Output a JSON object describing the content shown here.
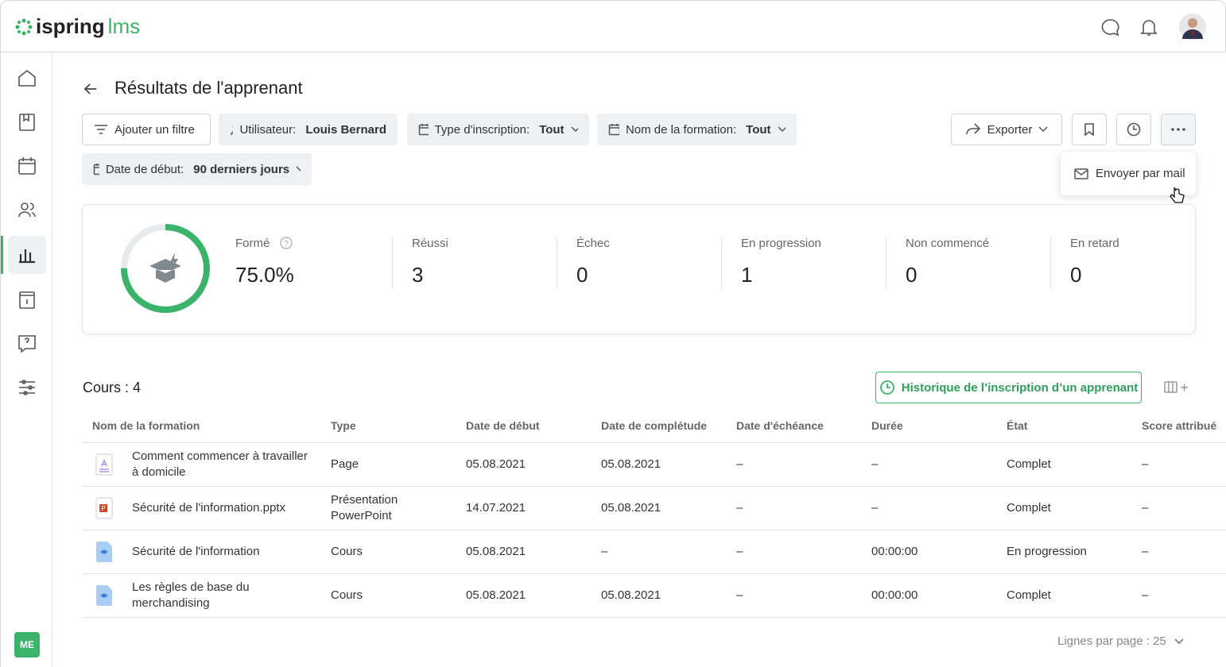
{
  "logo": {
    "brand": "ispring",
    "product": "lms"
  },
  "sidebar": {
    "avatar": "ME"
  },
  "header": {
    "title": "Résultats de l'apprenant"
  },
  "filters": [
    {
      "label": "Ajouter un filtre"
    },
    {
      "label": "Utilisateur:",
      "value": "Louis Bernard"
    },
    {
      "label": "Type d'inscription:",
      "value": "Tout"
    },
    {
      "label": "Nom de la formation:",
      "value": "Tout"
    },
    {
      "label": "Date de début:",
      "value": "90 derniers jours"
    }
  ],
  "actions": {
    "export": "Exporter",
    "menu_item": "Envoyer par mail"
  },
  "stats": {
    "trained": {
      "label": "Formé",
      "value": 75,
      "value_label": "75.0%"
    },
    "items": [
      {
        "label": "Réussi",
        "value": "3"
      },
      {
        "label": "Échec",
        "value": "0"
      },
      {
        "label": "En progression",
        "value": "1"
      },
      {
        "label": "Non commencé",
        "value": "0"
      },
      {
        "label": "En retard",
        "value": "0"
      }
    ]
  },
  "courses": {
    "count": "Cours : 4",
    "history_button": "Historique de l’inscription d’un apprenant"
  },
  "table": {
    "columns": [
      "Nom de la formation",
      "Type",
      "Date de début",
      "Date de complétude",
      "Date d'échéance",
      "Durée",
      "État",
      "Score attribué"
    ],
    "rows": [
      [
        "Comment commencer à travailler à domicile",
        "Page",
        "05.08.2021",
        "05.08.2021",
        "–",
        "–",
        "Complet",
        "–"
      ],
      [
        "Sécurité de l'information.pptx",
        "Présentation PowerPoint",
        "14.07.2021",
        "05.08.2021",
        "–",
        "–",
        "Complet",
        "–"
      ],
      [
        "Sécurité de l'information",
        "Cours",
        "05.08.2021",
        "–",
        "–",
        "00:00:00",
        "En progression",
        "–"
      ],
      [
        "Les règles de base du merchandising",
        "Cours",
        "05.08.2021",
        "05.08.2021",
        "–",
        "00:00:00",
        "Complet",
        "–"
      ]
    ]
  },
  "pagination": {
    "rows_per_page": "Lignes par page : 25"
  }
}
